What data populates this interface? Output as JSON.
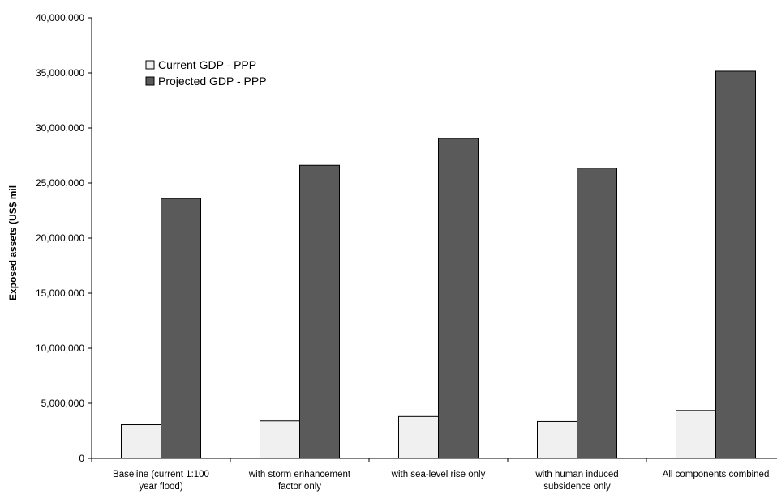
{
  "chart_data": {
    "type": "bar",
    "title": "",
    "xlabel": "",
    "ylabel": "Exposed assets (US$ mil",
    "ylim": [
      0,
      40000000
    ],
    "yticks": [
      "0",
      "5,000,000",
      "10,000,000",
      "15,000,000",
      "20,000,000",
      "25,000,000",
      "30,000,000",
      "35,000,000",
      "40,000,000"
    ],
    "ytick_values": [
      0,
      5000000,
      10000000,
      15000000,
      20000000,
      25000000,
      30000000,
      35000000,
      40000000
    ],
    "categories": [
      [
        "Baseline (current 1:100",
        "year flood)"
      ],
      [
        "with storm enhancement",
        "factor only"
      ],
      [
        "with sea-level rise only"
      ],
      [
        "with human induced",
        "subsidence only"
      ],
      [
        "All components combined"
      ]
    ],
    "series": [
      {
        "name": "Current GDP - PPP",
        "color": "#f0f0f0",
        "values": [
          3050000,
          3400000,
          3800000,
          3350000,
          4350000
        ]
      },
      {
        "name": "Projected GDP - PPP",
        "color": "#5a5a5a",
        "values": [
          23600000,
          26600000,
          29050000,
          26350000,
          35150000
        ]
      }
    ],
    "grid": false,
    "legend_position": "top-left"
  }
}
